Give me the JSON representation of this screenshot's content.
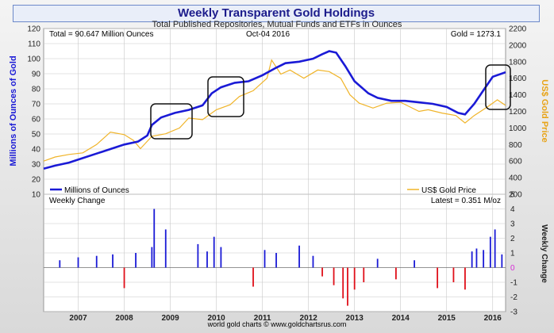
{
  "title": "Weekly Transparent Gold Holdings",
  "subtitle": "Total Published Repositories, Mutual Funds and ETFs in Ounces",
  "annotations": {
    "total": "Total = 90.647 Million Ounces",
    "date": "Oct-04  2016",
    "gold": "Gold = 1273.1",
    "weekly_change": "Weekly Change",
    "latest": "Latest = 0.351 M/oz",
    "credit": "world gold charts © www.goldchartsrus.com"
  },
  "colors": {
    "holdings": "#1a1ad6",
    "gold_price": "#f0b429",
    "positive_change": "#1a1ad6",
    "negative_change": "#e0101a",
    "left_axis_label": "#1a1ad6",
    "right_axis_label": "#e8a317",
    "grid": "#c8c8c8"
  },
  "chart_data": [
    {
      "type": "line",
      "title": "Weekly Transparent Gold Holdings",
      "ylabel": "Millions of Ounces of Gold",
      "y2label": "US$ Gold Price",
      "ylim": [
        10,
        120
      ],
      "y2lim": [
        200,
        2200
      ],
      "yticks": [
        10,
        20,
        30,
        40,
        50,
        60,
        70,
        80,
        90,
        100,
        110,
        120
      ],
      "y2ticks": [
        200,
        400,
        600,
        800,
        1000,
        1200,
        1400,
        1600,
        1800,
        2000,
        2200
      ],
      "x_categories": [
        "2007",
        "2008",
        "2009",
        "2010",
        "2011",
        "2012",
        "2013",
        "2014",
        "2015",
        "2016"
      ],
      "x_range": [
        2006.75,
        2016.78
      ],
      "grid": true,
      "legend_position": "bottom",
      "series": [
        {
          "name": "Millions of Ounces",
          "axis": "left",
          "x": [
            2006.75,
            2007.0,
            2007.3,
            2007.6,
            2007.9,
            2008.2,
            2008.5,
            2008.8,
            2009.0,
            2009.1,
            2009.3,
            2009.6,
            2009.9,
            2010.2,
            2010.4,
            2010.6,
            2010.9,
            2011.2,
            2011.5,
            2011.8,
            2012.0,
            2012.3,
            2012.6,
            2012.8,
            2012.95,
            2013.1,
            2013.3,
            2013.5,
            2013.8,
            2014.0,
            2014.3,
            2014.6,
            2014.9,
            2015.2,
            2015.5,
            2015.75,
            2015.9,
            2016.1,
            2016.3,
            2016.5,
            2016.78
          ],
          "values": [
            27,
            29,
            31,
            34,
            37,
            40,
            43,
            45,
            49,
            56,
            61,
            64,
            66,
            69,
            77,
            81,
            84,
            85,
            89,
            94,
            97,
            98,
            100,
            103,
            105,
            104,
            95,
            85,
            77,
            74,
            72,
            72,
            71,
            70,
            68,
            64,
            63,
            70,
            79,
            88,
            91
          ]
        },
        {
          "name": "US$ Gold Price",
          "axis": "right",
          "x": [
            2006.75,
            2007.0,
            2007.3,
            2007.6,
            2007.9,
            2008.2,
            2008.5,
            2008.7,
            2008.85,
            2009.1,
            2009.4,
            2009.7,
            2009.9,
            2010.2,
            2010.5,
            2010.8,
            2011.0,
            2011.3,
            2011.6,
            2011.7,
            2011.9,
            2012.1,
            2012.4,
            2012.7,
            2012.95,
            2013.2,
            2013.4,
            2013.6,
            2013.9,
            2014.2,
            2014.5,
            2014.9,
            2015.1,
            2015.4,
            2015.7,
            2015.9,
            2016.1,
            2016.4,
            2016.6,
            2016.78
          ],
          "values": [
            600,
            650,
            680,
            700,
            800,
            950,
            920,
            850,
            750,
            900,
            930,
            1000,
            1120,
            1100,
            1220,
            1280,
            1380,
            1450,
            1600,
            1820,
            1650,
            1700,
            1600,
            1700,
            1680,
            1600,
            1400,
            1300,
            1240,
            1300,
            1310,
            1200,
            1220,
            1180,
            1150,
            1060,
            1150,
            1260,
            1340,
            1273
          ]
        }
      ]
    },
    {
      "type": "bar",
      "title": "Weekly Change",
      "ylabel": "Weekly Change",
      "ylim": [
        -3,
        5
      ],
      "yticks": [
        -3,
        -2,
        -1,
        0,
        1,
        2,
        3,
        4,
        5
      ],
      "x_categories": [
        "2007",
        "2008",
        "2009",
        "2010",
        "2011",
        "2012",
        "2013",
        "2014",
        "2015",
        "2016"
      ],
      "series": [
        {
          "name": "Weekly Change",
          "x": [
            2007.1,
            2007.5,
            2007.9,
            2008.25,
            2008.5,
            2008.75,
            2009.1,
            2009.15,
            2009.4,
            2010.1,
            2010.3,
            2010.45,
            2010.6,
            2011.3,
            2011.55,
            2011.8,
            2012.3,
            2012.6,
            2012.8,
            2013.05,
            2013.25,
            2013.35,
            2013.5,
            2013.7,
            2014.0,
            2014.4,
            2014.8,
            2015.3,
            2015.65,
            2015.9,
            2016.05,
            2016.15,
            2016.3,
            2016.45,
            2016.55,
            2016.7
          ],
          "values": [
            0.5,
            0.7,
            0.8,
            0.9,
            -1.4,
            1.0,
            1.4,
            4.0,
            2.6,
            1.6,
            1.1,
            2.1,
            1.4,
            -1.3,
            1.2,
            1.0,
            1.5,
            0.8,
            -0.6,
            -1.2,
            -2.1,
            -2.6,
            -1.5,
            -1.0,
            0.6,
            -0.8,
            0.5,
            -1.4,
            -1.0,
            -1.5,
            1.1,
            1.3,
            1.2,
            2.1,
            2.6,
            0.9
          ]
        }
      ]
    }
  ]
}
